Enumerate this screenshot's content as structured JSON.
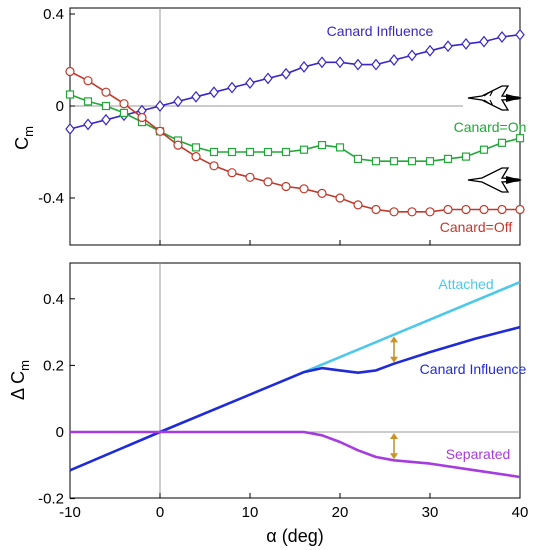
{
  "chart_data": [
    {
      "type": "line",
      "ylabel": "C",
      "ylabel_sub": "m",
      "xlim": [
        -10,
        40
      ],
      "ylim": [
        -0.6,
        0.4
      ],
      "ytick_labels": [
        "0.4",
        "0",
        "-0.4"
      ],
      "ytick_values": [
        0.4,
        0,
        -0.4
      ],
      "grid": false,
      "series": [
        {
          "name": "Canard Influence",
          "color": "#3a26c8",
          "marker": "diamond",
          "x": [
            -10,
            -8,
            -6,
            -4,
            -2,
            0,
            2,
            4,
            6,
            8,
            10,
            12,
            14,
            16,
            18,
            20,
            22,
            24,
            26,
            28,
            30,
            32,
            34,
            36,
            38,
            40
          ],
          "y": [
            -0.1,
            -0.08,
            -0.06,
            -0.04,
            -0.02,
            0.0,
            0.02,
            0.04,
            0.06,
            0.08,
            0.1,
            0.12,
            0.14,
            0.17,
            0.19,
            0.19,
            0.18,
            0.18,
            0.2,
            0.22,
            0.24,
            0.26,
            0.27,
            0.28,
            0.3,
            0.31
          ]
        },
        {
          "name": "Canard=On",
          "color": "#21a838",
          "marker": "square",
          "x": [
            -10,
            -8,
            -6,
            -4,
            -2,
            0,
            2,
            4,
            6,
            8,
            10,
            12,
            14,
            16,
            18,
            20,
            22,
            24,
            26,
            28,
            30,
            32,
            34,
            36,
            38,
            40
          ],
          "y": [
            0.05,
            0.02,
            0.0,
            -0.03,
            -0.07,
            -0.11,
            -0.15,
            -0.18,
            -0.2,
            -0.2,
            -0.2,
            -0.2,
            -0.2,
            -0.19,
            -0.17,
            -0.18,
            -0.23,
            -0.24,
            -0.24,
            -0.24,
            -0.24,
            -0.23,
            -0.22,
            -0.19,
            -0.16,
            -0.14
          ]
        },
        {
          "name": "Canard=Off",
          "color": "#c0392b",
          "marker": "circle",
          "x": [
            -10,
            -8,
            -6,
            -4,
            -2,
            0,
            2,
            4,
            6,
            8,
            10,
            12,
            14,
            16,
            18,
            20,
            22,
            24,
            26,
            28,
            30,
            32,
            34,
            36,
            38,
            40
          ],
          "y": [
            0.15,
            0.11,
            0.06,
            0.01,
            -0.05,
            -0.11,
            -0.17,
            -0.22,
            -0.26,
            -0.29,
            -0.31,
            -0.33,
            -0.35,
            -0.36,
            -0.38,
            -0.4,
            -0.43,
            -0.45,
            -0.46,
            -0.46,
            -0.46,
            -0.45,
            -0.45,
            -0.45,
            -0.45,
            -0.45
          ]
        }
      ],
      "annotations": [
        {
          "text": "Canard Influence",
          "color": "#3a26c8"
        },
        {
          "text": "Canard=On",
          "color": "#21a838"
        },
        {
          "text": "Canard=Off",
          "color": "#c0392b"
        }
      ],
      "icons": [
        "aircraft-with-canard-icon",
        "aircraft-without-canard-icon"
      ]
    },
    {
      "type": "line",
      "xlabel": "α (deg)",
      "ylabel": "Δ C",
      "ylabel_sub": "m",
      "xlim": [
        -10,
        40
      ],
      "ylim": [
        -0.2,
        0.5
      ],
      "xtick_labels": [
        "-10",
        "0",
        "10",
        "20",
        "30",
        "40"
      ],
      "xtick_values": [
        -10,
        0,
        10,
        20,
        30,
        40
      ],
      "ytick_labels": [
        "0.4",
        "0.2",
        "0",
        "-0.2"
      ],
      "ytick_values": [
        0.4,
        0.2,
        0,
        -0.2
      ],
      "grid": false,
      "series": [
        {
          "name": "Attached",
          "color": "#4dc8ea",
          "x": [
            16,
            40
          ],
          "y": [
            0.18,
            0.45
          ]
        },
        {
          "name": "Canard Influence",
          "color": "#1f2bd6",
          "x": [
            -10,
            0,
            16,
            18,
            20,
            22,
            24,
            26,
            30,
            35,
            40
          ],
          "y": [
            -0.115,
            0.0,
            0.18,
            0.192,
            0.185,
            0.178,
            0.185,
            0.205,
            0.24,
            0.28,
            0.315
          ]
        },
        {
          "name": "Separated",
          "color": "#a63ce0",
          "x": [
            -10,
            0,
            16,
            18,
            20,
            22,
            24,
            26,
            30,
            35,
            40
          ],
          "y": [
            0.0,
            0.0,
            0.0,
            -0.01,
            -0.03,
            -0.055,
            -0.075,
            -0.085,
            -0.095,
            -0.115,
            -0.135
          ]
        }
      ],
      "arrows": [
        {
          "x": 26,
          "y1": 0.29,
          "y2": 0.205,
          "color": "#c8942a"
        },
        {
          "x": 26,
          "y1": 0.0,
          "y2": -0.085,
          "color": "#c8942a"
        }
      ],
      "annotations": [
        {
          "text": "Attached",
          "color": "#4dc8ea"
        },
        {
          "text": "Canard Influence",
          "color": "#1f2bd6"
        },
        {
          "text": "Separated",
          "color": "#a63ce0"
        }
      ]
    }
  ]
}
